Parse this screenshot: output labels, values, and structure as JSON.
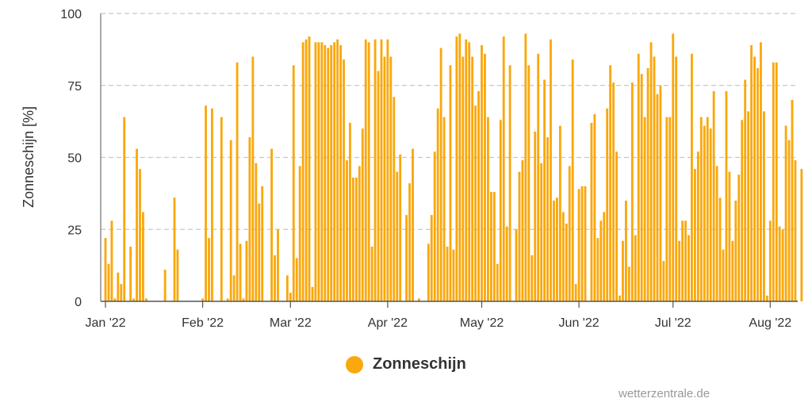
{
  "chart_data": {
    "type": "bar",
    "title": "",
    "xlabel": "",
    "ylabel": "Zonneschijn [%]",
    "ylim": [
      0,
      100
    ],
    "yticks": [
      0,
      25,
      50,
      75,
      100
    ],
    "grid": true,
    "legend_position": "bottom",
    "series_color": "#f9a80e",
    "x_start": "2022-01-01",
    "xticks": [
      {
        "label": "Jan '22",
        "date": "2022-01-01"
      },
      {
        "label": "Feb '22",
        "date": "2022-02-01"
      },
      {
        "label": "Mar '22",
        "date": "2022-03-01"
      },
      {
        "label": "Apr '22",
        "date": "2022-04-01"
      },
      {
        "label": "May '22",
        "date": "2022-05-01"
      },
      {
        "label": "Jun '22",
        "date": "2022-06-01"
      },
      {
        "label": "Jul '22",
        "date": "2022-07-01"
      },
      {
        "label": "Aug '22",
        "date": "2022-08-01"
      }
    ],
    "series": [
      {
        "name": "Zonneschijn",
        "values": [
          22,
          13,
          28,
          1,
          10,
          6,
          64,
          0,
          19,
          1,
          53,
          46,
          31,
          1,
          0,
          0,
          0,
          0,
          0,
          11,
          0,
          0,
          36,
          18,
          0,
          0,
          0,
          0,
          0,
          0,
          0,
          1,
          68,
          22,
          67,
          0,
          0,
          64,
          0,
          1,
          56,
          9,
          83,
          20,
          1,
          21,
          57,
          85,
          48,
          34,
          40,
          0,
          0,
          53,
          16,
          25,
          0,
          0,
          9,
          3,
          82,
          15,
          47,
          90,
          91,
          92,
          5,
          90,
          90,
          90,
          89,
          88,
          89,
          90,
          91,
          89,
          84,
          49,
          62,
          43,
          43,
          47,
          60,
          91,
          90,
          19,
          91,
          80,
          91,
          85,
          91,
          85,
          71,
          45,
          51,
          0,
          30,
          41,
          53,
          0,
          1,
          0,
          0,
          20,
          30,
          52,
          67,
          88,
          64,
          19,
          82,
          18,
          92,
          93,
          85,
          91,
          90,
          85,
          68,
          73,
          89,
          86,
          64,
          38,
          38,
          13,
          63,
          92,
          26,
          82,
          0,
          25,
          45,
          49,
          93,
          82,
          16,
          59,
          86,
          48,
          77,
          57,
          91,
          35,
          36,
          61,
          31,
          27,
          47,
          84,
          6,
          39,
          40,
          40,
          0,
          62,
          65,
          22,
          28,
          31,
          67,
          82,
          76,
          52,
          2,
          21,
          35,
          12,
          76,
          23,
          86,
          79,
          64,
          81,
          90,
          85,
          72,
          75,
          14,
          64,
          64,
          93,
          85,
          21,
          28,
          28,
          23,
          86,
          46,
          52,
          64,
          61,
          64,
          60,
          73,
          47,
          36,
          18,
          73,
          45,
          21,
          35,
          44,
          63,
          77,
          66,
          89,
          85,
          81,
          90,
          66,
          2,
          28,
          83,
          83,
          26,
          25,
          61,
          56,
          70,
          49,
          0,
          46
        ]
      }
    ]
  },
  "legend": {
    "label": "Zonneschijn",
    "color": "#f9a80e"
  },
  "credit": "wetterzentrale.de"
}
